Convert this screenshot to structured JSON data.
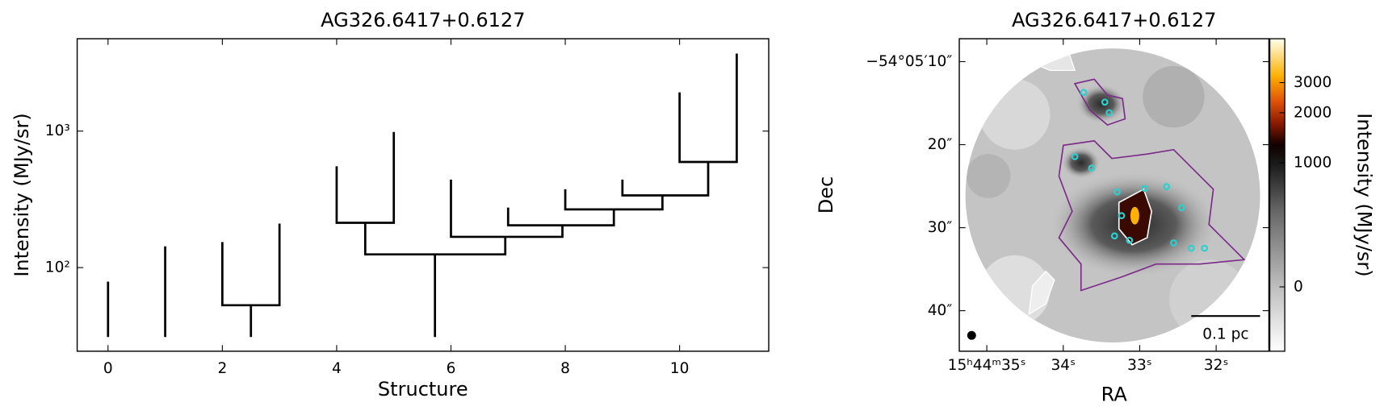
{
  "chart_data": [
    {
      "type": "dendrogram",
      "title": "AG326.6417+0.6127",
      "xlabel": "Structure",
      "ylabel": "Intensity (MJy/sr)",
      "log_y": true,
      "color": "#000000",
      "xlim": [
        -0.54,
        11.56
      ],
      "ylim": [
        24.4,
        4750
      ],
      "xticks": [
        0,
        2,
        4,
        6,
        8,
        10
      ],
      "yticks": [
        {
          "value": 100,
          "label": "10²"
        },
        {
          "value": 1000,
          "label": "10³"
        }
      ],
      "branches": [
        {
          "x": [
            0,
            0
          ],
          "y": [
            31,
            79
          ]
        },
        {
          "x": [
            1,
            1
          ],
          "y": [
            31,
            143
          ]
        },
        {
          "x": [
            2,
            2,
            3,
            3
          ],
          "y": [
            154,
            53,
            53,
            210
          ]
        },
        {
          "x": [
            2.5,
            2.5
          ],
          "y": [
            31,
            53
          ]
        },
        {
          "x": [
            4,
            4,
            5,
            5
          ],
          "y": [
            552,
            213,
            213,
            986
          ]
        },
        {
          "x": [
            4.5,
            4.5,
            6.95,
            6.95
          ],
          "y": [
            213,
            125,
            125,
            168
          ]
        },
        {
          "x": [
            5.72,
            5.72
          ],
          "y": [
            31,
            125
          ]
        },
        {
          "x": [
            6,
            6,
            7.95,
            7.95
          ],
          "y": [
            441,
            168,
            168,
            204
          ]
        },
        {
          "x": [
            7,
            7,
            8.85,
            8.85
          ],
          "y": [
            275,
            204,
            204,
            267
          ]
        },
        {
          "x": [
            8,
            8,
            9.7,
            9.7
          ],
          "y": [
            375,
            267,
            267,
            338
          ]
        },
        {
          "x": [
            9,
            9,
            10.5,
            10.5
          ],
          "y": [
            441,
            338,
            338,
            594
          ]
        },
        {
          "x": [
            10,
            10,
            11,
            11
          ],
          "y": [
            1923,
            594,
            594,
            3700
          ]
        }
      ]
    },
    {
      "type": "image",
      "title": "AG326.6417+0.6127",
      "xlabel": "RA",
      "ylabel": "Dec",
      "xlim": [
        35.36,
        31.31
      ],
      "ylim": [
        44.88,
        7.24
      ],
      "xticks": [
        {
          "value": 35,
          "label": "15ʰ44ᵐ35ˢ"
        },
        {
          "value": 34,
          "label": "34ˢ"
        },
        {
          "value": 33,
          "label": "33ˢ"
        },
        {
          "value": 32,
          "label": "32ˢ"
        }
      ],
      "yticks": [
        {
          "value": 10,
          "label": "−54°05′10″"
        },
        {
          "value": 20,
          "label": "20″"
        },
        {
          "value": 30,
          "label": "30″"
        },
        {
          "value": 40,
          "label": "40″"
        }
      ],
      "scalebar": "0.1 pc",
      "colorbar": {
        "label": "Intensity (MJy/sr)",
        "stretch": "asinh",
        "clim": [
          -385,
          5390
        ],
        "ticks": [
          0,
          1000,
          2000,
          3000
        ]
      }
    }
  ]
}
